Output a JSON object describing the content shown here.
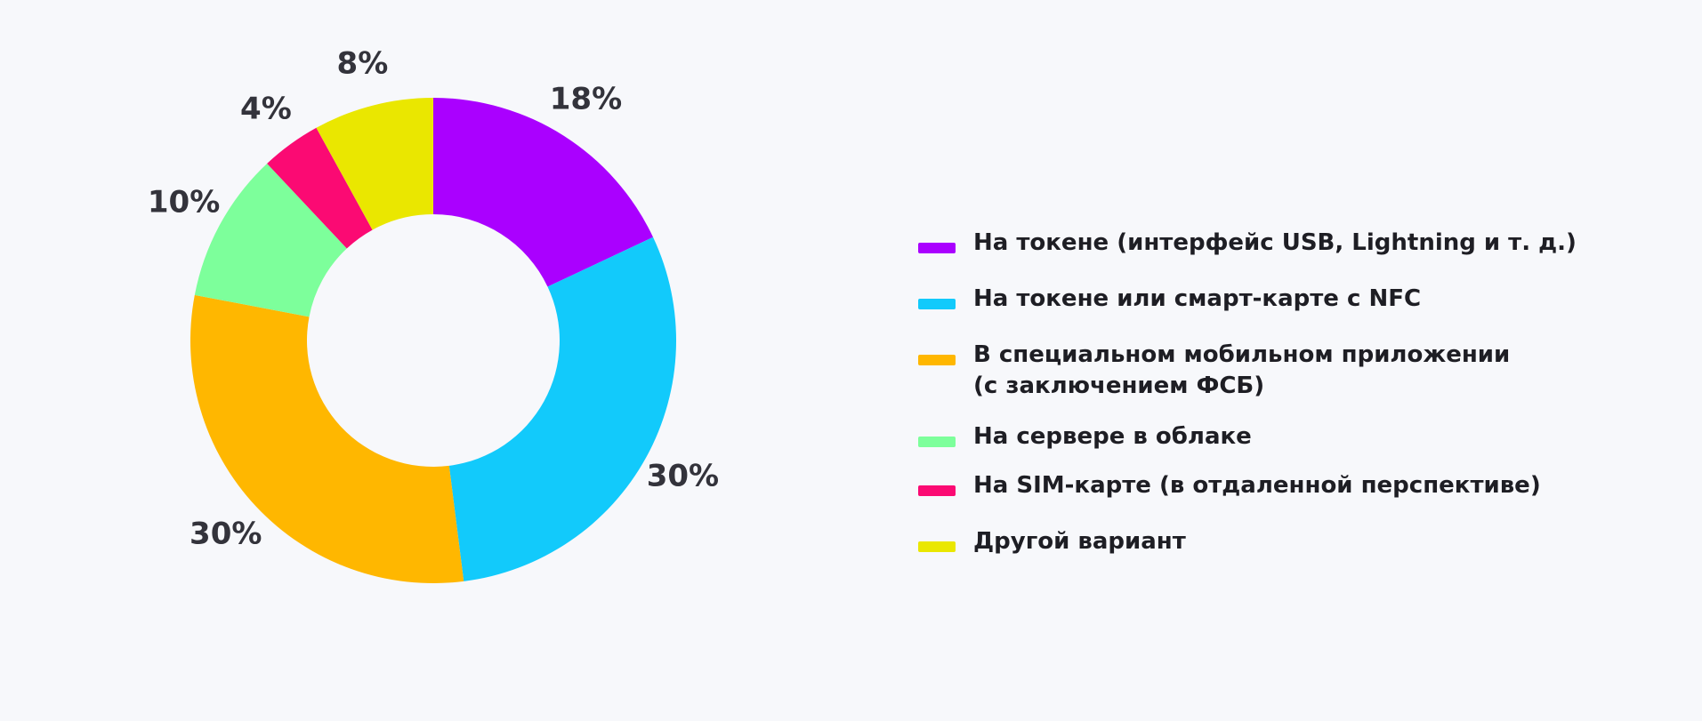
{
  "chart_data": {
    "type": "pie",
    "variant": "donut",
    "legend_position": "right",
    "slices": [
      {
        "label": "На токене (интерфейс USB, Lightning и т. д.)",
        "value": 18,
        "value_label": "18%",
        "color": "#aa00ff"
      },
      {
        "label": "На токене или смарт-карте с NFC",
        "value": 30,
        "value_label": "30%",
        "color": "#12cafb"
      },
      {
        "label": "В специальном мобильном приложении\n(с заключением ФСБ)",
        "value": 30,
        "value_label": "30%",
        "color": "#ffb700"
      },
      {
        "label": "На сервере в облаке",
        "value": 10,
        "value_label": "10%",
        "color": "#7dff9b"
      },
      {
        "label": "На SIM-карте (в отдаленной перспективе)",
        "value": 4,
        "value_label": "4%",
        "color": "#fb0a73"
      },
      {
        "label": "Другой вариант",
        "value": 8,
        "value_label": "8%",
        "color": "#eae700"
      }
    ]
  }
}
